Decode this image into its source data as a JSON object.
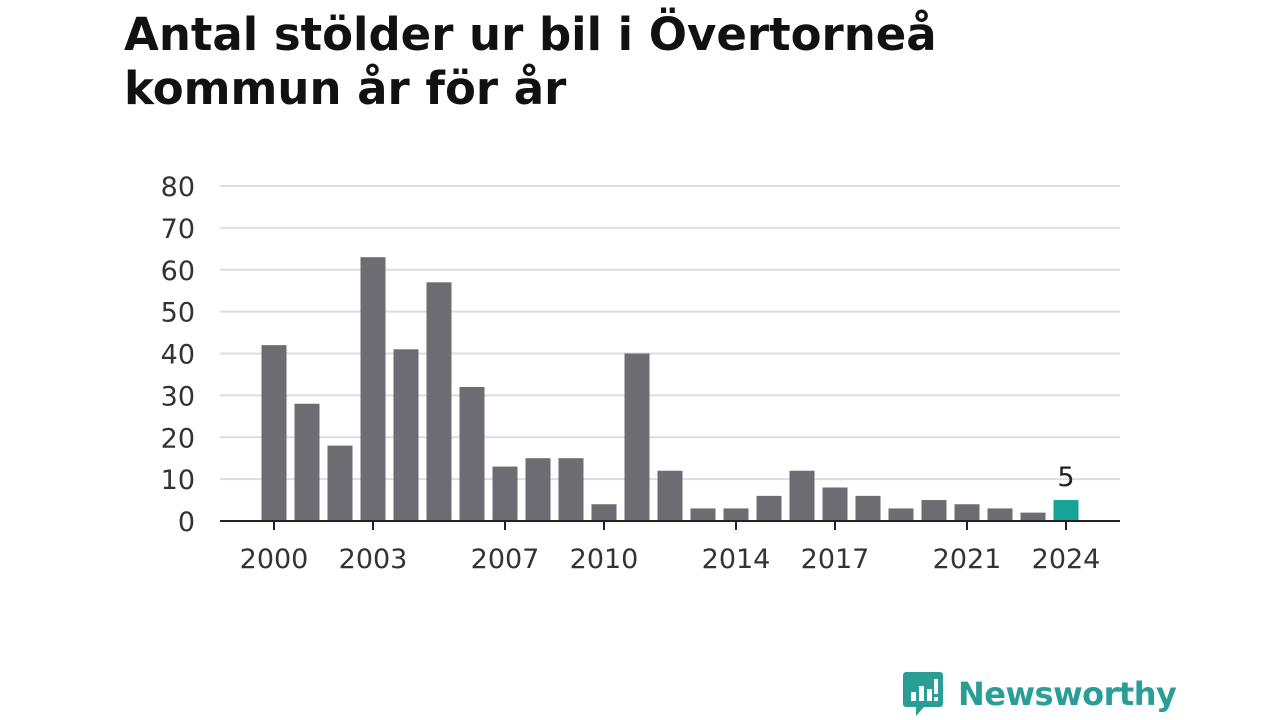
{
  "title": "Antal stölder ur bil i Övertorneå kommun år för år",
  "brand": {
    "name": "Newsworthy",
    "icon": "newsworthy-logo-icon",
    "color": "#2a9d96"
  },
  "chart_data": {
    "type": "bar",
    "title": "Antal stölder ur bil i Övertorneå kommun år för år",
    "xlabel": "",
    "ylabel": "",
    "categories": [
      2000,
      2001,
      2002,
      2003,
      2004,
      2005,
      2006,
      2007,
      2008,
      2009,
      2010,
      2011,
      2012,
      2013,
      2014,
      2015,
      2016,
      2017,
      2018,
      2019,
      2020,
      2021,
      2022,
      2023,
      2024
    ],
    "values": [
      42,
      28,
      18,
      63,
      41,
      57,
      32,
      13,
      15,
      15,
      4,
      40,
      12,
      3,
      3,
      6,
      12,
      8,
      6,
      3,
      5,
      4,
      3,
      2,
      5
    ],
    "x_tick_labels": [
      "2000",
      "2003",
      "2007",
      "2010",
      "2014",
      "2017",
      "2021",
      "2024"
    ],
    "y_ticks": [
      0,
      10,
      20,
      30,
      40,
      50,
      60,
      70,
      80
    ],
    "ylim": [
      0,
      80
    ],
    "grid": true,
    "bar_color": "#6d6c72",
    "highlight_color": "#17a396",
    "highlight": {
      "category": 2024,
      "label": "5"
    }
  }
}
